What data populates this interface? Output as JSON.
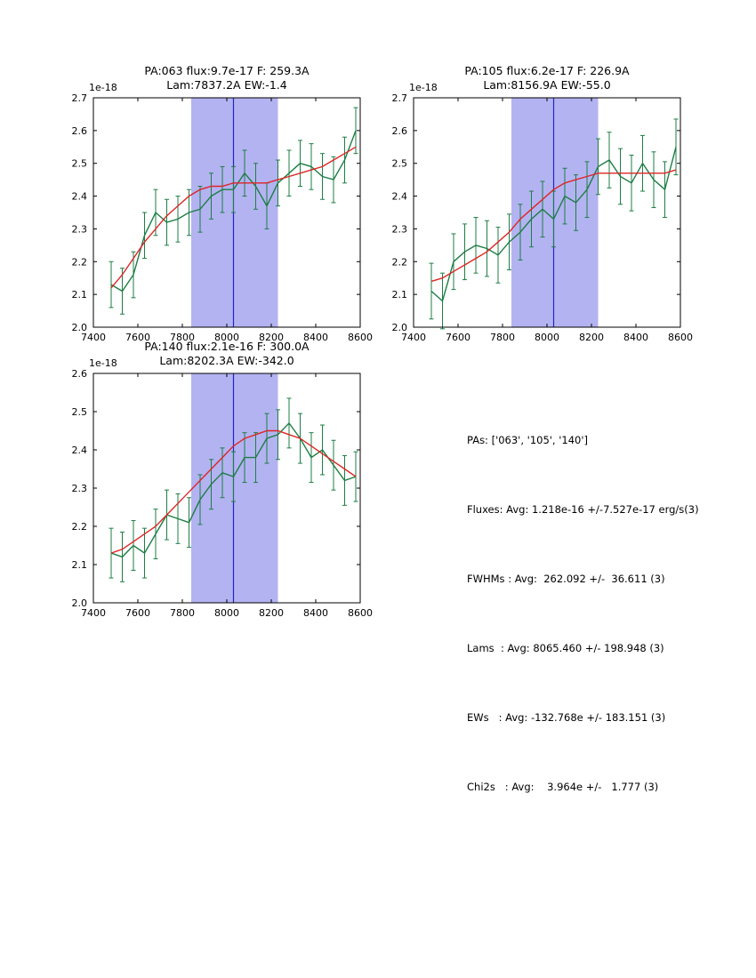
{
  "figure": {
    "background": "#ffffff"
  },
  "styles": {
    "data_color": "#1e7d45",
    "fit_color": "#dd2626",
    "band_color": "#b3b3f2",
    "band_line_color": "#2525c4",
    "axis_color": "#000000",
    "text_color": "#000000"
  },
  "stats": {
    "lines": [
      "PAs: ['063', '105', '140']",
      "Fluxes: Avg: 1.218e-16 +/-7.527e-17 erg/s(3)",
      "FWHMs : Avg:  262.092 +/-  36.611 (3)",
      "Lams  : Avg: 8065.460 +/- 198.948 (3)",
      "EWs   : Avg: -132.768e +/- 183.151 (3)",
      "Chi2s   : Avg:    3.964e +/-   1.777 (3)"
    ]
  },
  "chart_data": [
    {
      "type": "line",
      "title_line1": "PA:063 flux:9.7e-17 F: 259.3A",
      "title_line2": "Lam:7837.2A EW:-1.4",
      "offset_text": "1e-18",
      "xlim": [
        7400,
        8600
      ],
      "ylim": [
        2.0,
        2.7
      ],
      "xticks": [
        7400,
        7600,
        7800,
        8000,
        8200,
        8400,
        8600
      ],
      "yticks": [
        2.0,
        2.1,
        2.2,
        2.3,
        2.4,
        2.5,
        2.6,
        2.7
      ],
      "band": {
        "x0": 7840,
        "x1": 8230,
        "center": 8030
      },
      "err": 0.07,
      "x": [
        7480,
        7530,
        7580,
        7630,
        7680,
        7730,
        7780,
        7830,
        7880,
        7930,
        7980,
        8030,
        8080,
        8130,
        8180,
        8230,
        8280,
        8330,
        8380,
        8430,
        8480,
        8530,
        8580
      ],
      "data_y": [
        2.13,
        2.11,
        2.16,
        2.28,
        2.35,
        2.32,
        2.33,
        2.35,
        2.36,
        2.4,
        2.42,
        2.42,
        2.47,
        2.43,
        2.37,
        2.44,
        2.47,
        2.5,
        2.49,
        2.46,
        2.45,
        2.51,
        2.6
      ],
      "fit_y": [
        2.12,
        2.16,
        2.21,
        2.26,
        2.3,
        2.34,
        2.37,
        2.4,
        2.42,
        2.43,
        2.43,
        2.44,
        2.44,
        2.44,
        2.44,
        2.45,
        2.46,
        2.47,
        2.48,
        2.49,
        2.51,
        2.53,
        2.55
      ]
    },
    {
      "type": "line",
      "title_line1": "PA:105 flux:6.2e-17 F: 226.9A",
      "title_line2": "Lam:8156.9A EW:-55.0",
      "offset_text": "1e-18",
      "xlim": [
        7400,
        8600
      ],
      "ylim": [
        2.0,
        2.7
      ],
      "xticks": [
        7400,
        7600,
        7800,
        8000,
        8200,
        8400,
        8600
      ],
      "yticks": [
        2.0,
        2.1,
        2.2,
        2.3,
        2.4,
        2.5,
        2.6,
        2.7
      ],
      "band": {
        "x0": 7840,
        "x1": 8230,
        "center": 8030
      },
      "err": 0.085,
      "x": [
        7480,
        7530,
        7580,
        7630,
        7680,
        7730,
        7780,
        7830,
        7880,
        7930,
        7980,
        8030,
        8080,
        8130,
        8180,
        8230,
        8280,
        8330,
        8380,
        8430,
        8480,
        8530,
        8580
      ],
      "data_y": [
        2.11,
        2.08,
        2.2,
        2.23,
        2.25,
        2.24,
        2.22,
        2.26,
        2.29,
        2.33,
        2.36,
        2.33,
        2.4,
        2.38,
        2.42,
        2.49,
        2.51,
        2.46,
        2.44,
        2.5,
        2.45,
        2.42,
        2.55
      ],
      "fit_y": [
        2.14,
        2.15,
        2.17,
        2.19,
        2.21,
        2.23,
        2.26,
        2.29,
        2.33,
        2.36,
        2.39,
        2.42,
        2.44,
        2.45,
        2.46,
        2.47,
        2.47,
        2.47,
        2.47,
        2.47,
        2.47,
        2.47,
        2.48
      ]
    },
    {
      "type": "line",
      "title_line1": "PA:140 flux:2.1e-16 F: 300.0A",
      "title_line2": "Lam:8202.3A EW:-342.0",
      "offset_text": "1e-18",
      "xlim": [
        7400,
        8600
      ],
      "ylim": [
        2.0,
        2.6
      ],
      "xticks": [
        7400,
        7600,
        7800,
        8000,
        8200,
        8400,
        8600
      ],
      "yticks": [
        2.0,
        2.1,
        2.2,
        2.3,
        2.4,
        2.5,
        2.6
      ],
      "band": {
        "x0": 7840,
        "x1": 8230,
        "center": 8030
      },
      "err": 0.065,
      "x": [
        7480,
        7530,
        7580,
        7630,
        7680,
        7730,
        7780,
        7830,
        7880,
        7930,
        7980,
        8030,
        8080,
        8130,
        8180,
        8230,
        8280,
        8330,
        8380,
        8430,
        8480,
        8530,
        8580
      ],
      "data_y": [
        2.13,
        2.12,
        2.15,
        2.13,
        2.18,
        2.23,
        2.22,
        2.21,
        2.27,
        2.31,
        2.34,
        2.33,
        2.38,
        2.38,
        2.43,
        2.44,
        2.47,
        2.43,
        2.38,
        2.4,
        2.36,
        2.32,
        2.33
      ],
      "fit_y": [
        2.13,
        2.14,
        2.16,
        2.18,
        2.2,
        2.23,
        2.26,
        2.29,
        2.32,
        2.35,
        2.38,
        2.41,
        2.43,
        2.44,
        2.45,
        2.45,
        2.44,
        2.43,
        2.41,
        2.39,
        2.37,
        2.35,
        2.33
      ]
    }
  ]
}
